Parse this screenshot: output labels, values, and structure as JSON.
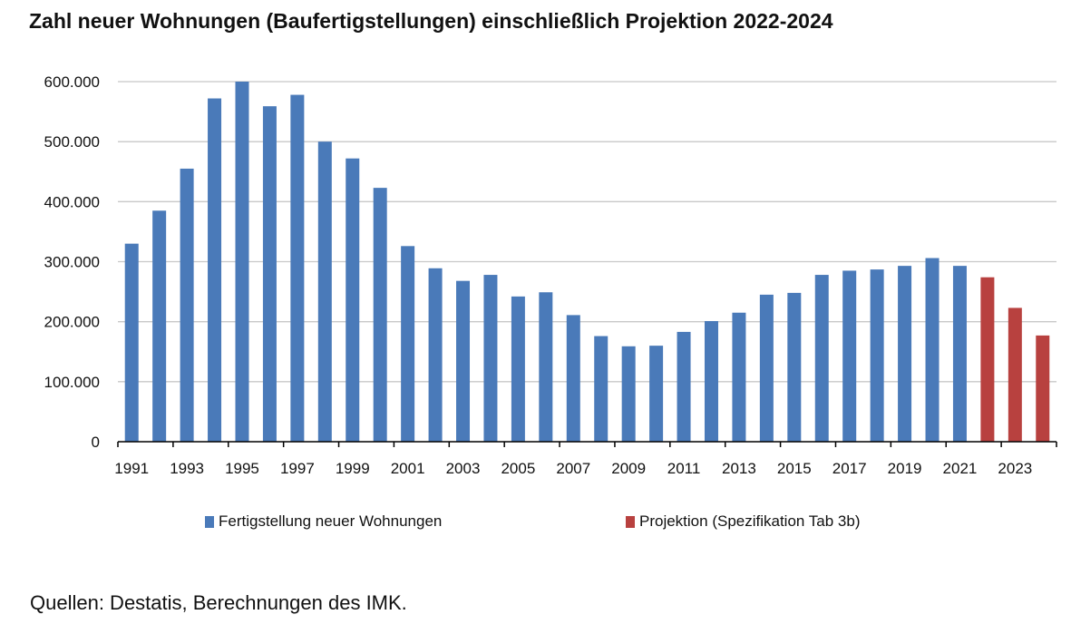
{
  "title": "Zahl neuer Wohnungen (Baufertigstellungen) einschließlich Projektion 2022-2024",
  "source_note": "Quellen: Destatis, Berechnungen des IMK.",
  "colors": {
    "completions": "#4a7ab9",
    "projection": "#b8413f",
    "grid": "#c8c8c8",
    "axis": "#000000"
  },
  "chart_data": {
    "type": "bar",
    "title": "Zahl neuer Wohnungen (Baufertigstellungen) einschließlich Projektion 2022-2024",
    "xlabel": "",
    "ylabel": "",
    "ylim": [
      0,
      600000
    ],
    "yticks": [
      0,
      100000,
      200000,
      300000,
      400000,
      500000,
      600000
    ],
    "ytick_labels": [
      "0",
      "100.000",
      "200.000",
      "300.000",
      "400.000",
      "500.000",
      "600.000"
    ],
    "grid": true,
    "legend_position": "bottom",
    "categories": [
      "1991",
      "1992",
      "1993",
      "1994",
      "1995",
      "1996",
      "1997",
      "1998",
      "1999",
      "2000",
      "2001",
      "2002",
      "2003",
      "2004",
      "2005",
      "2006",
      "2007",
      "2008",
      "2009",
      "2010",
      "2011",
      "2012",
      "2013",
      "2014",
      "2015",
      "2016",
      "2017",
      "2018",
      "2019",
      "2020",
      "2021",
      "2022",
      "2023",
      "2024"
    ],
    "xtick_labels": [
      "1991",
      "1993",
      "1995",
      "1997",
      "1999",
      "2001",
      "2003",
      "2005",
      "2007",
      "2009",
      "2011",
      "2013",
      "2015",
      "2017",
      "2019",
      "2021",
      "2023"
    ],
    "series": [
      {
        "name": "Fertigstellung neuer Wohnungen",
        "color": "#4a7ab9",
        "values": [
          330000,
          385000,
          455000,
          572000,
          600000,
          559000,
          578000,
          500000,
          472000,
          423000,
          326000,
          289000,
          268000,
          278000,
          242000,
          249000,
          211000,
          176000,
          159000,
          160000,
          183000,
          201000,
          215000,
          245000,
          248000,
          278000,
          285000,
          287000,
          293000,
          306000,
          293000,
          null,
          null,
          null
        ]
      },
      {
        "name": "Projektion (Spezifikation Tab 3b)",
        "color": "#b8413f",
        "values": [
          null,
          null,
          null,
          null,
          null,
          null,
          null,
          null,
          null,
          null,
          null,
          null,
          null,
          null,
          null,
          null,
          null,
          null,
          null,
          null,
          null,
          null,
          null,
          null,
          null,
          null,
          null,
          null,
          null,
          null,
          null,
          274000,
          223000,
          177000
        ]
      }
    ]
  }
}
